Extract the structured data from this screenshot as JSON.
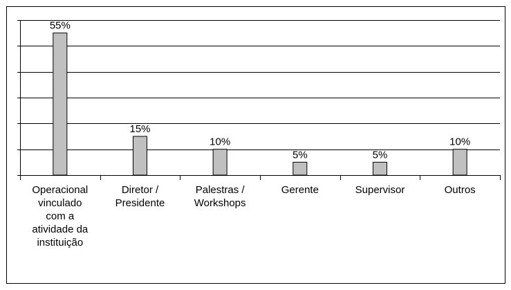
{
  "chart_data": {
    "type": "bar",
    "categories": [
      "Operacional vinculado com a atividade da instituição",
      "Diretor / Presidente",
      "Palestras / Workshops",
      "Gerente",
      "Supervisor",
      "Outros"
    ],
    "values": [
      55,
      15,
      10,
      5,
      5,
      10
    ],
    "value_labels": [
      "55%",
      "15%",
      "10%",
      "5%",
      "5%",
      "10%"
    ],
    "color": "#c0c0c0",
    "ylim": [
      0,
      60
    ],
    "yticks": [
      0,
      10,
      20,
      30,
      40,
      50,
      60
    ],
    "grid": true
  }
}
